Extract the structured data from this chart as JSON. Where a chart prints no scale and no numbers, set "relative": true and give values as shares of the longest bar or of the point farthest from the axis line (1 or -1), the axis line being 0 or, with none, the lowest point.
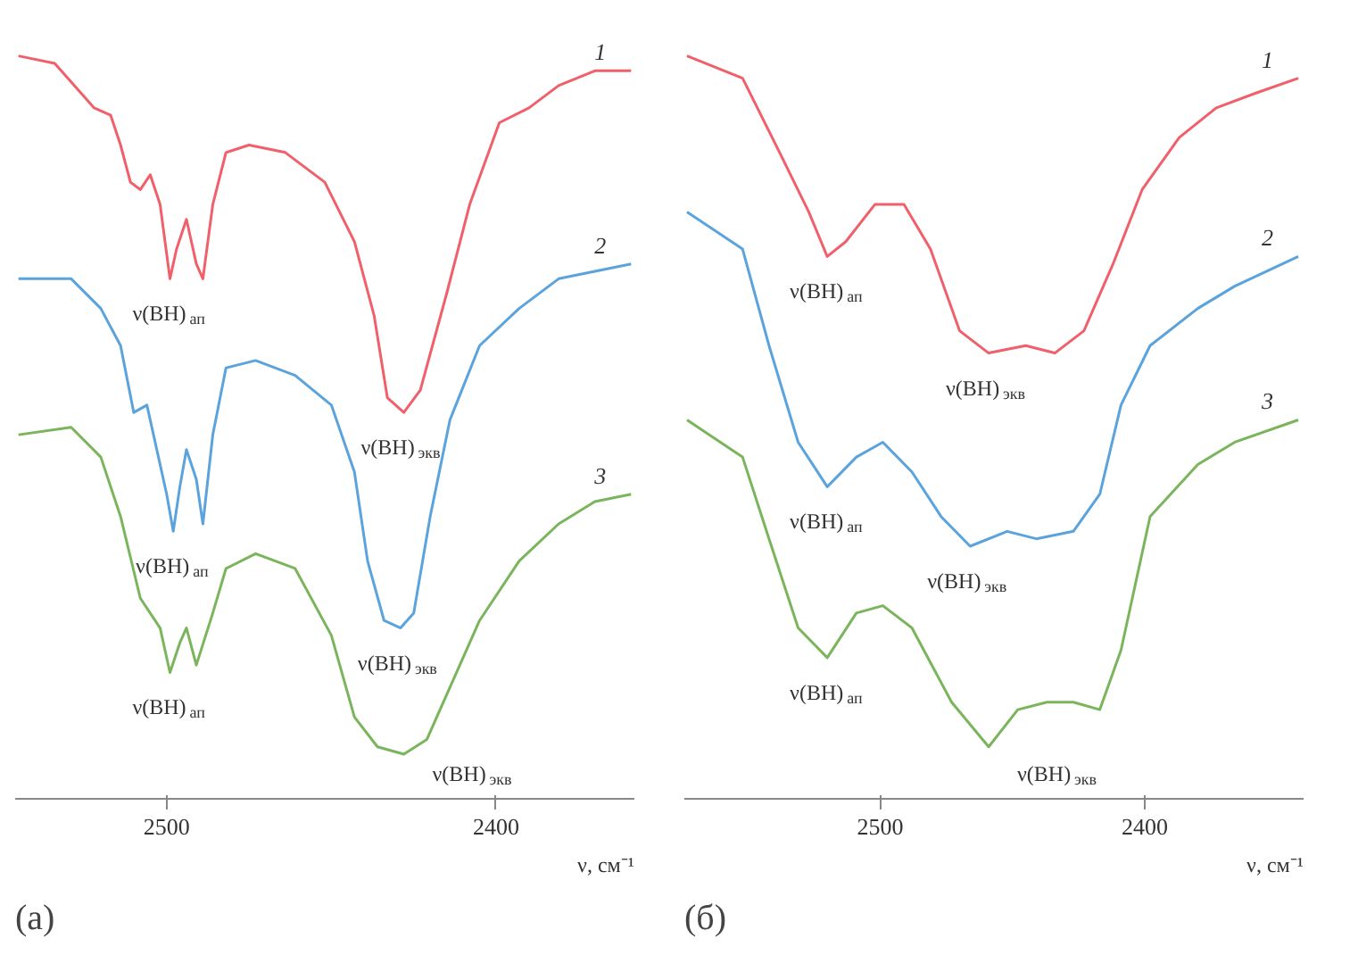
{
  "chart_data": [
    {
      "type": "line",
      "title": "(а)",
      "xlabel": "ν, см⁻¹",
      "xlim": [
        2546,
        2358
      ],
      "xticks": [
        2500,
        2400
      ],
      "relative": true,
      "series": [
        {
          "name": "1",
          "color": "#f0606a",
          "x": [
            2545,
            2534,
            2522,
            2517,
            2514,
            2511,
            2508,
            2505,
            2502,
            2499,
            2497,
            2494,
            2491,
            2489,
            2486,
            2482,
            2475,
            2464,
            2452,
            2443,
            2437,
            2433,
            2428,
            2423,
            2415,
            2408,
            2399,
            2390,
            2381,
            2370,
            2359
          ],
          "values": [
            1.0,
            0.99,
            0.93,
            0.92,
            0.88,
            0.83,
            0.82,
            0.84,
            0.8,
            0.7,
            0.74,
            0.78,
            0.72,
            0.7,
            0.8,
            0.87,
            0.88,
            0.87,
            0.83,
            0.75,
            0.65,
            0.54,
            0.52,
            0.55,
            0.68,
            0.8,
            0.91,
            0.93,
            0.96,
            0.98,
            0.98
          ]
        },
        {
          "name": "2",
          "color": "#5ba3dc",
          "x": [
            2545,
            2529,
            2520,
            2514,
            2510,
            2506,
            2504,
            2500,
            2498,
            2496,
            2494,
            2491,
            2489,
            2486,
            2482,
            2473,
            2461,
            2450,
            2443,
            2439,
            2434,
            2429,
            2425,
            2420,
            2414,
            2405,
            2393,
            2381,
            2370,
            2359
          ],
          "values": [
            0.7,
            0.7,
            0.66,
            0.61,
            0.52,
            0.53,
            0.49,
            0.41,
            0.36,
            0.42,
            0.47,
            0.43,
            0.37,
            0.49,
            0.58,
            0.59,
            0.57,
            0.53,
            0.44,
            0.32,
            0.24,
            0.23,
            0.25,
            0.38,
            0.51,
            0.61,
            0.66,
            0.7,
            0.71,
            0.72
          ]
        },
        {
          "name": "3",
          "color": "#7ab55c",
          "x": [
            2545,
            2529,
            2520,
            2514,
            2508,
            2502,
            2499,
            2496,
            2494,
            2491,
            2486,
            2482,
            2473,
            2461,
            2450,
            2443,
            2436,
            2428,
            2421,
            2414,
            2405,
            2393,
            2381,
            2370,
            2359
          ],
          "values": [
            0.49,
            0.5,
            0.46,
            0.38,
            0.27,
            0.23,
            0.17,
            0.21,
            0.23,
            0.18,
            0.25,
            0.31,
            0.33,
            0.31,
            0.22,
            0.11,
            0.07,
            0.06,
            0.08,
            0.15,
            0.24,
            0.32,
            0.37,
            0.4,
            0.41
          ]
        }
      ],
      "annotations": [
        "ν(BH)$_{ап}$",
        "ν(BH)$_{экв}$",
        "ν(BH)$_{ап}$",
        "ν(BH)$_{экв}$",
        "ν(BH)$_{ап}$",
        "ν(BH)$_{экв}$"
      ]
    },
    {
      "type": "line",
      "title": "(б)",
      "xlabel": "ν, см⁻¹",
      "xlim": [
        2574,
        2340
      ],
      "xticks": [
        2500,
        2400
      ],
      "relative": true,
      "series": [
        {
          "name": "1",
          "color": "#f0606a",
          "x": [
            2573,
            2552,
            2538,
            2527,
            2520,
            2513,
            2502,
            2491,
            2481,
            2470,
            2459,
            2445,
            2434,
            2423,
            2412,
            2401,
            2387,
            2373,
            2358,
            2342
          ],
          "values": [
            1.0,
            0.97,
            0.87,
            0.79,
            0.73,
            0.75,
            0.8,
            0.8,
            0.74,
            0.63,
            0.6,
            0.61,
            0.6,
            0.63,
            0.72,
            0.82,
            0.89,
            0.93,
            0.95,
            0.97
          ]
        },
        {
          "name": "2",
          "color": "#5ba3dc",
          "x": [
            2573,
            2552,
            2542,
            2531,
            2520,
            2509,
            2499,
            2488,
            2477,
            2466,
            2452,
            2441,
            2427,
            2417,
            2409,
            2398,
            2380,
            2366,
            2342
          ],
          "values": [
            0.79,
            0.74,
            0.61,
            0.48,
            0.42,
            0.46,
            0.48,
            0.44,
            0.38,
            0.34,
            0.36,
            0.35,
            0.36,
            0.41,
            0.53,
            0.61,
            0.66,
            0.69,
            0.73
          ]
        },
        {
          "name": "3",
          "color": "#7ab55c",
          "x": [
            2573,
            2552,
            2542,
            2531,
            2520,
            2509,
            2499,
            2488,
            2473,
            2459,
            2448,
            2437,
            2427,
            2417,
            2409,
            2398,
            2380,
            2366,
            2342
          ],
          "values": [
            0.51,
            0.46,
            0.35,
            0.23,
            0.19,
            0.25,
            0.26,
            0.23,
            0.13,
            0.07,
            0.12,
            0.13,
            0.13,
            0.12,
            0.2,
            0.38,
            0.45,
            0.48,
            0.51
          ]
        }
      ],
      "annotations": [
        "ν(BH)$_{ап}$",
        "ν(BH)$_{экв}$",
        "ν(BH)$_{ап}$",
        "ν(BH)$_{экв}$",
        "ν(BH)$_{ап}$",
        "ν(BH)$_{экв}$"
      ]
    }
  ]
}
